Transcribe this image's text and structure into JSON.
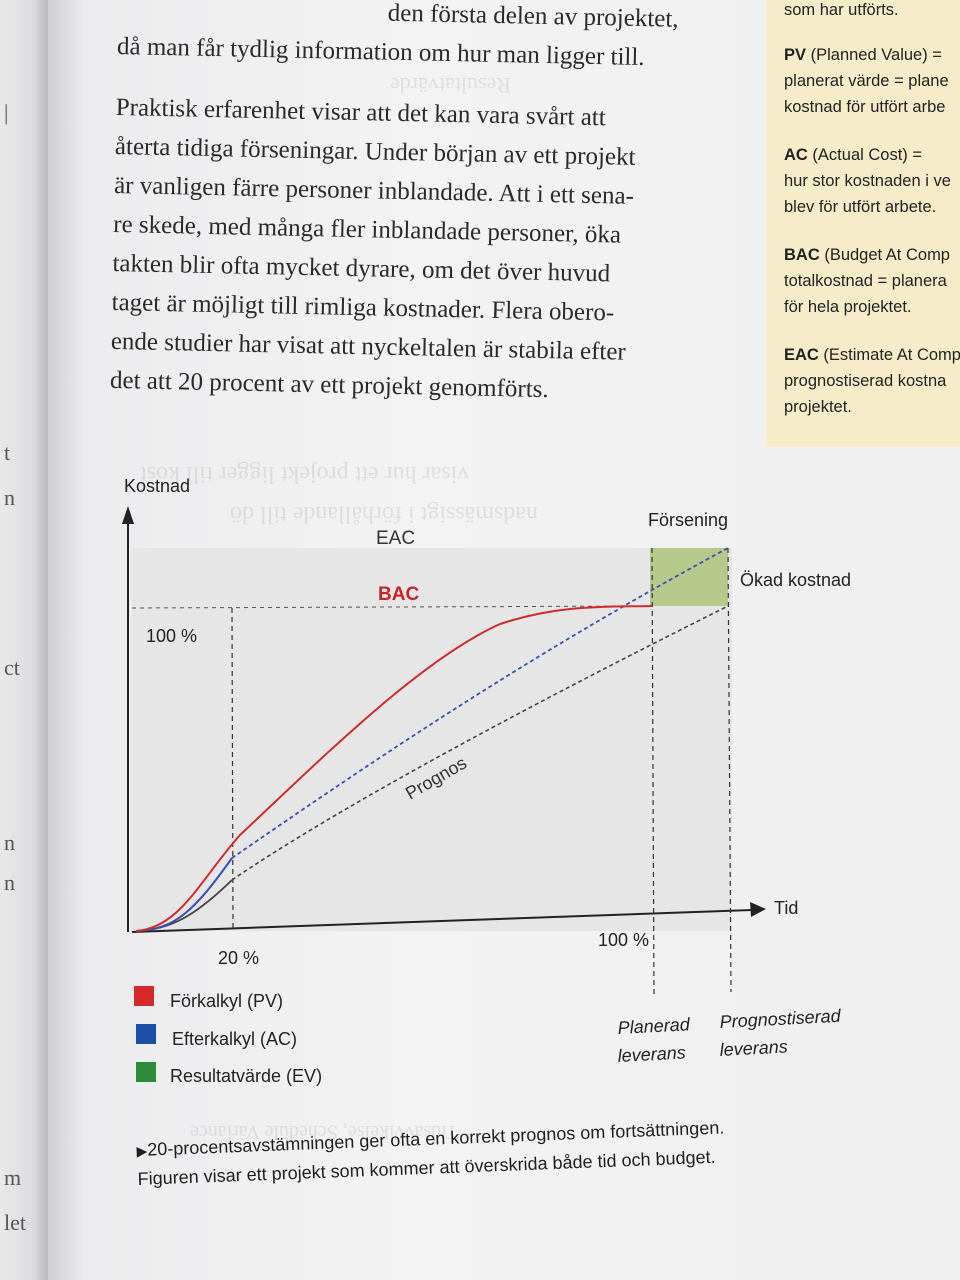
{
  "body": {
    "line_partial_1": "den första delen av projektet,",
    "line_partial_2": "då man får tydlig information om hur man ligger till.",
    "paragraph": [
      "Praktisk erfarenhet visar att det kan vara svårt att",
      "återta tidiga förseningar. Under början av ett projekt",
      "är vanligen färre personer inblandade. Att i ett sena-",
      "re skede, med många fler inblandade personer, öka",
      "takten blir ofta mycket dyrare, om det över huvud",
      "taget är möjligt till rimliga kostnader. Flera obero-",
      "ende studier har visat att nyckeltalen är stabila efter",
      "det att 20 procent av ett projekt genomförts."
    ]
  },
  "sidebar": {
    "top": "som har utförts.",
    "pv_term": "PV",
    "pv_def": " (Planned Value) =",
    "pv_l2": "planerat värde = plane",
    "pv_l3": "kostnad för utfört arbe",
    "ac_term": "AC",
    "ac_def": " (Actual Cost) =",
    "ac_l2": "hur stor kostnaden i ve",
    "ac_l3": "blev för utfört arbete.",
    "bac_term": "BAC",
    "bac_def": " (Budget At Comp",
    "bac_l2": "totalkostnad = planera",
    "bac_l3": "för hela projektet.",
    "eac_term": "EAC",
    "eac_def": " (Estimate At Comp",
    "eac_l2": "prognostiserad kostna",
    "eac_l3": "projektet."
  },
  "figure": {
    "y_axis_label": "Kostnad",
    "x_axis_label": "Tid",
    "eac_label": "EAC",
    "bac_label": "BAC",
    "y_100": "100 %",
    "x_20": "20 %",
    "x_100": "100 %",
    "prognos_label": "Prognos",
    "forsening_label": "Försening",
    "okad_kostnad_label": "Ökad kostnad",
    "planerad_line1": "Planerad",
    "planerad_line2": "leverans",
    "prognostiserad_line1": "Prognostiserad",
    "prognostiserad_line2": "leverans",
    "legend": [
      {
        "label": "Förkalkyl (PV)",
        "color": "#d42a2a"
      },
      {
        "label": "Efterkalkyl (AC)",
        "color": "#1e4fa8"
      },
      {
        "label": "Resultatvärde (EV)",
        "color": "#2f8a3c"
      }
    ],
    "colors": {
      "pv": "#d42a2a",
      "ac": "#3a4fb5",
      "ev": "#444444",
      "bac_text": "#c8242a",
      "delay_box": "#b7c98a"
    }
  },
  "caption": {
    "line1": "20-procentsavstämningen ger ofta en korrekt prognos om fortsättningen.",
    "line2": "Figuren visar ett projekt som kommer att överskrida både tid och budget."
  }
}
